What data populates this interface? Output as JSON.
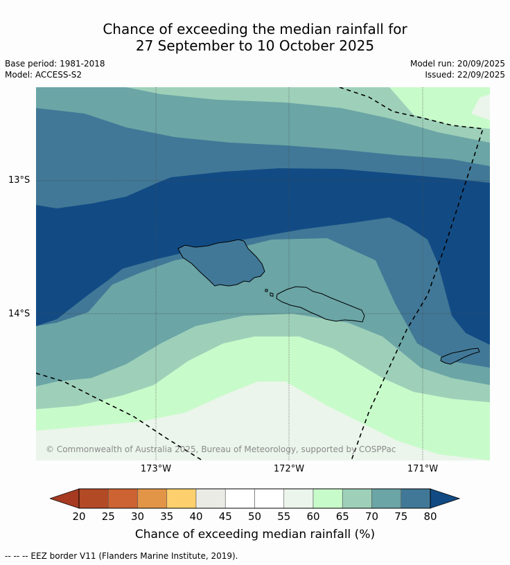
{
  "title": {
    "line1": "Chance of exceeding the median rainfall for",
    "line2": "27 September to 10 October 2025"
  },
  "info": {
    "base_period": "Base period: 1981-2018",
    "model": "Model: ACCESS-S2",
    "model_run": "Model run: 20/09/2025",
    "issued": "Issued: 22/09/2025"
  },
  "map": {
    "lat_labels": [
      "13°S",
      "14°S"
    ],
    "lon_labels": [
      "173°W",
      "172°W",
      "171°W"
    ],
    "copyright": "© Commonwealth of Australia 2025, Bureau of Meteorology, supported by COSPPac"
  },
  "colorbar": {
    "ticks": [
      "20",
      "25",
      "30",
      "35",
      "40",
      "45",
      "50",
      "55",
      "60",
      "65",
      "70",
      "75",
      "80"
    ],
    "colors": [
      "#a63b22",
      "#b34a26",
      "#cd6332",
      "#e29547",
      "#fdd06d",
      "#ebebe6",
      "#ffffff",
      "#ffffff",
      "#ebf5eb",
      "#c8fbca",
      "#9ed0b9",
      "#6ba5a6",
      "#417897",
      "#124b84"
    ],
    "label": "Chance of exceeding median rainfall (%)"
  },
  "legend": {
    "text": "--  --  -- EEZ border V11 (Flanders Marine Institute, 2019)."
  }
}
